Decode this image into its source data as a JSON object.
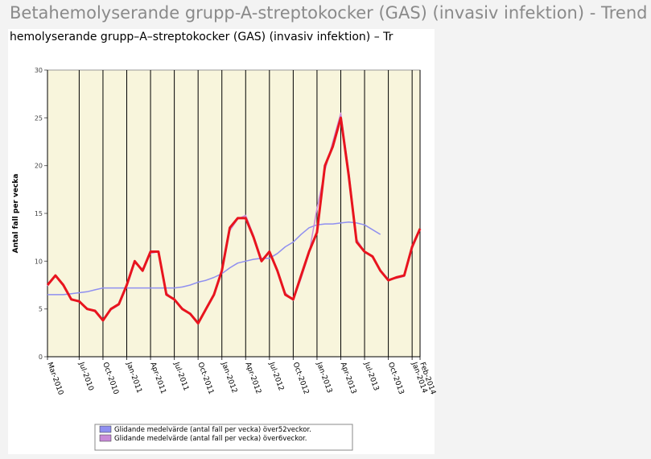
{
  "page": {
    "title": "Betahemolyserande grupp-A-streptokocker (GAS) (invasiv infektion) - Trend",
    "subtitle": "hemolyserande grupp–A–streptokocker (GAS) (invasiv infektion) – Tr"
  },
  "chart_data": {
    "type": "line",
    "y_label": "Antal fall per vecka",
    "categories": [
      "Mar-2010",
      null,
      null,
      null,
      "Jul-2010",
      null,
      null,
      "Oct-2010",
      null,
      null,
      "Jan-2011",
      null,
      null,
      "Apr-2011",
      null,
      null,
      "Jul-2011",
      null,
      null,
      "Oct-2011",
      null,
      null,
      "Jan-2012",
      null,
      null,
      "Apr-2012",
      null,
      null,
      "Jul-2012",
      null,
      null,
      "Oct-2012",
      null,
      null,
      "Jan-2013",
      null,
      null,
      "Apr-2013",
      null,
      null,
      "Jul-2013",
      null,
      null,
      "Oct-2013",
      null,
      null,
      "Jan-2014",
      "Feb-2014"
    ],
    "ylim": [
      0,
      30
    ],
    "yticks": [
      0,
      5,
      10,
      15,
      20,
      25,
      30
    ],
    "grid": true,
    "series": [
      {
        "name": "Glidande medelvärde (antal fall per vecka) över52veckor.",
        "color": "#8f8ff0",
        "values": [
          6.5,
          6.5,
          6.5,
          6.6,
          6.7,
          6.8,
          7,
          7.2,
          7.2,
          7.2,
          7.2,
          7.2,
          7.2,
          7.2,
          7.2,
          7.2,
          7.2,
          7.3,
          7.5,
          7.8,
          8,
          8.3,
          8.7,
          9.3,
          9.8,
          10,
          10.2,
          10.3,
          10.3,
          10.8,
          11.5,
          12,
          12.8,
          13.5,
          13.8,
          13.9,
          13.9,
          14,
          14.1,
          14,
          13.8,
          13.3,
          12.8,
          null,
          null,
          null,
          null,
          null
        ]
      },
      {
        "name": "Glidande medelvärde (antal fall per vecka) över6veckor.",
        "color": "#c88ad8",
        "values": [
          7.4,
          8.4,
          7.6,
          6.1,
          5.7,
          5.1,
          4.7,
          3.9,
          4.9,
          5.4,
          7.3,
          9.8,
          9.2,
          10.8,
          11,
          6.7,
          5.9,
          5.1,
          4.4,
          3.6,
          4.9,
          6.4,
          9.1,
          13.2,
          14.4,
          14.8,
          12.7,
          10.2,
          10.8,
          9.1,
          6.7,
          5.9,
          8.2,
          10.8,
          15.5,
          19.5,
          22.5,
          25.5,
          19.5,
          12.3,
          11,
          10.4,
          9.1,
          8.1,
          8.2,
          8.4,
          11.3,
          13.3
        ]
      },
      {
        "color": "#e8141e",
        "values": [
          7.5,
          8.5,
          7.5,
          6,
          5.8,
          5,
          4.8,
          3.8,
          5,
          5.5,
          7.5,
          10,
          9,
          11,
          11,
          6.5,
          6,
          5,
          4.5,
          3.5,
          5,
          6.5,
          9,
          13.5,
          14.5,
          14.5,
          12.5,
          10,
          11,
          9,
          6.5,
          6,
          8.5,
          11,
          13,
          20,
          22,
          25,
          19,
          12,
          11,
          10.5,
          9,
          8,
          8.3,
          8.5,
          11.5,
          13.4
        ]
      }
    ]
  }
}
